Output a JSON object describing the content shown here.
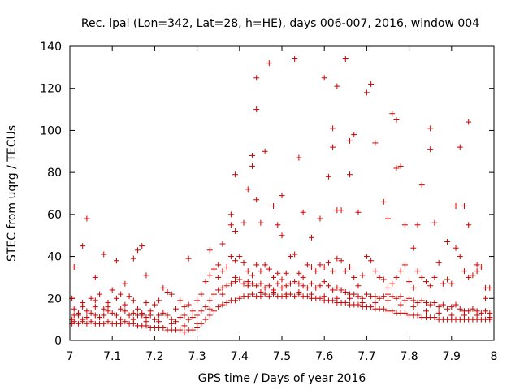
{
  "chart_data": {
    "type": "scatter",
    "title": "Rec. lpal (Lon=342, Lat=28, h=HE), days 006-007, 2016, window 004",
    "xlabel": "GPS time / Days of year 2016",
    "ylabel": "STEC from uqrg / TECUs",
    "xlim": [
      7,
      8
    ],
    "ylim": [
      0,
      140
    ],
    "xticks": [
      7,
      7.1,
      7.2,
      7.3,
      7.4,
      7.5,
      7.6,
      7.7,
      7.8,
      7.9,
      8
    ],
    "xtick_labels": [
      "7",
      "7.1",
      "7.2",
      "7.3",
      "7.4",
      "7.5",
      "7.6",
      "7.7",
      "7.8",
      "7.9",
      "8"
    ],
    "yticks": [
      0,
      20,
      40,
      60,
      80,
      100,
      120,
      140
    ],
    "ytick_labels": [
      "0",
      "20",
      "40",
      "60",
      "80",
      "100",
      "120",
      "140"
    ],
    "marker": "plus",
    "color": "#cc0000",
    "grid": false,
    "points": [
      [
        7.01,
        35
      ],
      [
        7.03,
        45
      ],
      [
        7.04,
        58
      ],
      [
        7.06,
        30
      ],
      [
        7.08,
        41
      ],
      [
        7.11,
        38
      ],
      [
        7.13,
        27
      ],
      [
        7.15,
        39
      ],
      [
        7.16,
        43
      ],
      [
        7.17,
        45
      ],
      [
        7.18,
        31
      ],
      [
        7.28,
        39
      ],
      [
        7.33,
        43
      ],
      [
        7.35,
        36
      ],
      [
        7.36,
        46
      ],
      [
        7.38,
        60
      ],
      [
        7.38,
        55
      ],
      [
        7.39,
        52
      ],
      [
        7.39,
        79
      ],
      [
        7.41,
        56
      ],
      [
        7.42,
        72
      ],
      [
        7.43,
        88
      ],
      [
        7.43,
        83
      ],
      [
        7.44,
        125
      ],
      [
        7.44,
        110
      ],
      [
        7.44,
        67
      ],
      [
        7.45,
        56
      ],
      [
        7.46,
        90
      ],
      [
        7.47,
        132
      ],
      [
        7.48,
        64
      ],
      [
        7.49,
        55
      ],
      [
        7.5,
        69
      ],
      [
        7.5,
        50
      ],
      [
        7.53,
        134
      ],
      [
        7.54,
        87
      ],
      [
        7.55,
        61
      ],
      [
        7.57,
        49
      ],
      [
        7.59,
        58
      ],
      [
        7.6,
        125
      ],
      [
        7.61,
        78
      ],
      [
        7.62,
        101
      ],
      [
        7.62,
        92
      ],
      [
        7.63,
        121
      ],
      [
        7.63,
        62
      ],
      [
        7.64,
        62
      ],
      [
        7.65,
        134
      ],
      [
        7.66,
        95
      ],
      [
        7.67,
        98
      ],
      [
        7.66,
        79
      ],
      [
        7.68,
        61
      ],
      [
        7.7,
        118
      ],
      [
        7.71,
        122
      ],
      [
        7.72,
        94
      ],
      [
        7.74,
        66
      ],
      [
        7.75,
        58
      ],
      [
        7.76,
        108
      ],
      [
        7.77,
        82
      ],
      [
        7.77,
        105
      ],
      [
        7.78,
        83
      ],
      [
        7.79,
        55
      ],
      [
        7.81,
        44
      ],
      [
        7.82,
        55
      ],
      [
        7.83,
        74
      ],
      [
        7.85,
        101
      ],
      [
        7.85,
        91
      ],
      [
        7.86,
        56
      ],
      [
        7.89,
        47
      ],
      [
        7.91,
        64
      ],
      [
        7.92,
        92
      ],
      [
        7.93,
        64
      ],
      [
        7.94,
        104
      ],
      [
        7.94,
        55
      ],
      [
        7.96,
        36
      ],
      [
        7.98,
        25
      ],
      [
        7.005,
        20
      ],
      [
        7.01,
        15
      ],
      [
        7.02,
        12
      ],
      [
        7.03,
        18
      ],
      [
        7.04,
        14
      ],
      [
        7.05,
        20
      ],
      [
        7.06,
        16
      ],
      [
        7.07,
        22
      ],
      [
        7.08,
        15
      ],
      [
        7.09,
        18
      ],
      [
        7.1,
        24
      ],
      [
        7.11,
        20
      ],
      [
        7.12,
        22
      ],
      [
        7.13,
        17
      ],
      [
        7.14,
        21
      ],
      [
        7.15,
        19
      ],
      [
        7.16,
        15
      ],
      [
        7.17,
        13
      ],
      [
        7.18,
        18
      ],
      [
        7.19,
        14
      ],
      [
        7.2,
        17
      ],
      [
        7.21,
        19
      ],
      [
        7.22,
        25
      ],
      [
        7.23,
        23
      ],
      [
        7.24,
        22
      ],
      [
        7.25,
        15
      ],
      [
        7.26,
        19
      ],
      [
        7.27,
        16
      ],
      [
        7.28,
        17
      ],
      [
        7.29,
        14
      ],
      [
        7.3,
        19
      ],
      [
        7.31,
        22
      ],
      [
        7.32,
        28
      ],
      [
        7.33,
        31
      ],
      [
        7.34,
        34
      ],
      [
        7.35,
        30
      ],
      [
        7.36,
        33
      ],
      [
        7.37,
        35
      ],
      [
        7.38,
        40
      ],
      [
        7.39,
        38
      ],
      [
        7.4,
        40
      ],
      [
        7.41,
        37
      ],
      [
        7.42,
        33
      ],
      [
        7.43,
        31
      ],
      [
        7.44,
        36
      ],
      [
        7.45,
        33
      ],
      [
        7.46,
        36
      ],
      [
        7.47,
        34
      ],
      [
        7.48,
        30
      ],
      [
        7.49,
        32
      ],
      [
        7.5,
        29
      ],
      [
        7.51,
        32
      ],
      [
        7.52,
        40
      ],
      [
        7.53,
        41
      ],
      [
        7.54,
        32
      ],
      [
        7.55,
        30
      ],
      [
        7.56,
        36
      ],
      [
        7.57,
        35
      ],
      [
        7.58,
        33
      ],
      [
        7.59,
        36
      ],
      [
        7.6,
        35
      ],
      [
        7.61,
        37
      ],
      [
        7.62,
        33
      ],
      [
        7.63,
        39
      ],
      [
        7.64,
        38
      ],
      [
        7.65,
        33
      ],
      [
        7.66,
        35
      ],
      [
        7.67,
        30
      ],
      [
        7.68,
        26
      ],
      [
        7.69,
        31
      ],
      [
        7.7,
        40
      ],
      [
        7.71,
        38
      ],
      [
        7.72,
        33
      ],
      [
        7.73,
        30
      ],
      [
        7.74,
        29
      ],
      [
        7.75,
        25
      ],
      [
        7.76,
        27
      ],
      [
        7.77,
        30
      ],
      [
        7.78,
        33
      ],
      [
        7.79,
        36
      ],
      [
        7.8,
        28
      ],
      [
        7.81,
        25
      ],
      [
        7.82,
        33
      ],
      [
        7.83,
        30
      ],
      [
        7.84,
        28
      ],
      [
        7.85,
        26
      ],
      [
        7.86,
        30
      ],
      [
        7.87,
        37
      ],
      [
        7.88,
        27
      ],
      [
        7.89,
        29
      ],
      [
        7.9,
        27
      ],
      [
        7.91,
        44
      ],
      [
        7.92,
        40
      ],
      [
        7.93,
        33
      ],
      [
        7.94,
        30
      ],
      [
        7.95,
        31
      ],
      [
        7.96,
        33
      ],
      [
        7.97,
        35
      ],
      [
        7.98,
        20
      ],
      [
        7.99,
        25
      ],
      [
        7.005,
        10
      ],
      [
        7.01,
        12
      ],
      [
        7.02,
        13
      ],
      [
        7.03,
        10
      ],
      [
        7.04,
        11
      ],
      [
        7.05,
        13
      ],
      [
        7.06,
        12
      ],
      [
        7.07,
        11
      ],
      [
        7.08,
        12
      ],
      [
        7.09,
        14
      ],
      [
        7.1,
        13
      ],
      [
        7.11,
        12
      ],
      [
        7.12,
        15
      ],
      [
        7.13,
        14
      ],
      [
        7.14,
        12
      ],
      [
        7.15,
        13
      ],
      [
        7.16,
        12
      ],
      [
        7.17,
        12
      ],
      [
        7.18,
        11
      ],
      [
        7.19,
        12
      ],
      [
        7.2,
        10
      ],
      [
        7.21,
        12
      ],
      [
        7.22,
        13
      ],
      [
        7.23,
        12
      ],
      [
        7.24,
        10
      ],
      [
        7.25,
        9
      ],
      [
        7.26,
        11
      ],
      [
        7.27,
        12
      ],
      [
        7.28,
        10
      ],
      [
        7.29,
        11
      ],
      [
        7.3,
        12
      ],
      [
        7.31,
        14
      ],
      [
        7.32,
        16
      ],
      [
        7.33,
        19
      ],
      [
        7.34,
        22
      ],
      [
        7.35,
        24
      ],
      [
        7.36,
        25
      ],
      [
        7.37,
        26
      ],
      [
        7.38,
        27
      ],
      [
        7.39,
        28
      ],
      [
        7.4,
        29
      ],
      [
        7.41,
        27
      ],
      [
        7.42,
        28
      ],
      [
        7.43,
        27
      ],
      [
        7.44,
        26
      ],
      [
        7.45,
        27
      ],
      [
        7.46,
        25
      ],
      [
        7.47,
        26
      ],
      [
        7.48,
        24
      ],
      [
        7.49,
        27
      ],
      [
        7.5,
        25
      ],
      [
        7.51,
        26
      ],
      [
        7.52,
        27
      ],
      [
        7.53,
        28
      ],
      [
        7.54,
        27
      ],
      [
        7.55,
        26
      ],
      [
        7.56,
        25
      ],
      [
        7.57,
        27
      ],
      [
        7.58,
        25
      ],
      [
        7.59,
        26
      ],
      [
        7.6,
        28
      ],
      [
        7.61,
        26
      ],
      [
        7.62,
        24
      ],
      [
        7.63,
        25
      ],
      [
        7.64,
        24
      ],
      [
        7.65,
        23
      ],
      [
        7.66,
        22
      ],
      [
        7.67,
        22
      ],
      [
        7.68,
        21
      ],
      [
        7.69,
        20
      ],
      [
        7.7,
        22
      ],
      [
        7.71,
        21
      ],
      [
        7.72,
        21
      ],
      [
        7.73,
        20
      ],
      [
        7.74,
        21
      ],
      [
        7.75,
        22
      ],
      [
        7.76,
        21
      ],
      [
        7.77,
        20
      ],
      [
        7.78,
        21
      ],
      [
        7.79,
        19
      ],
      [
        7.8,
        20
      ],
      [
        7.81,
        19
      ],
      [
        7.82,
        18
      ],
      [
        7.83,
        19
      ],
      [
        7.84,
        18
      ],
      [
        7.85,
        17
      ],
      [
        7.86,
        18
      ],
      [
        7.87,
        16
      ],
      [
        7.88,
        17
      ],
      [
        7.89,
        15
      ],
      [
        7.9,
        16
      ],
      [
        7.91,
        17
      ],
      [
        7.92,
        15
      ],
      [
        7.93,
        14
      ],
      [
        7.94,
        14
      ],
      [
        7.95,
        15
      ],
      [
        7.96,
        14
      ],
      [
        7.97,
        13
      ],
      [
        7.98,
        14
      ],
      [
        7.99,
        13
      ],
      [
        7.005,
        8
      ],
      [
        7.01,
        9
      ],
      [
        7.02,
        8
      ],
      [
        7.03,
        9
      ],
      [
        7.04,
        8
      ],
      [
        7.05,
        9
      ],
      [
        7.06,
        8
      ],
      [
        7.07,
        8
      ],
      [
        7.08,
        8
      ],
      [
        7.09,
        9
      ],
      [
        7.1,
        8
      ],
      [
        7.11,
        8
      ],
      [
        7.12,
        8
      ],
      [
        7.13,
        9
      ],
      [
        7.14,
        8
      ],
      [
        7.15,
        8
      ],
      [
        7.16,
        7
      ],
      [
        7.17,
        7
      ],
      [
        7.18,
        7
      ],
      [
        7.19,
        6
      ],
      [
        7.2,
        6
      ],
      [
        7.21,
        6
      ],
      [
        7.22,
        6
      ],
      [
        7.23,
        5
      ],
      [
        7.24,
        5
      ],
      [
        7.25,
        5
      ],
      [
        7.26,
        5
      ],
      [
        7.27,
        4
      ],
      [
        7.28,
        5
      ],
      [
        7.29,
        5
      ],
      [
        7.3,
        6
      ],
      [
        7.31,
        8
      ],
      [
        7.32,
        10
      ],
      [
        7.33,
        12
      ],
      [
        7.34,
        14
      ],
      [
        7.35,
        16
      ],
      [
        7.36,
        17
      ],
      [
        7.37,
        18
      ],
      [
        7.38,
        19
      ],
      [
        7.39,
        19
      ],
      [
        7.4,
        20
      ],
      [
        7.41,
        21
      ],
      [
        7.42,
        21
      ],
      [
        7.43,
        22
      ],
      [
        7.44,
        21
      ],
      [
        7.45,
        21
      ],
      [
        7.46,
        22
      ],
      [
        7.47,
        21
      ],
      [
        7.48,
        22
      ],
      [
        7.49,
        21
      ],
      [
        7.5,
        21
      ],
      [
        7.51,
        21
      ],
      [
        7.52,
        22
      ],
      [
        7.53,
        21
      ],
      [
        7.54,
        22
      ],
      [
        7.55,
        21
      ],
      [
        7.56,
        21
      ],
      [
        7.57,
        20
      ],
      [
        7.58,
        20
      ],
      [
        7.59,
        20
      ],
      [
        7.6,
        19
      ],
      [
        7.61,
        19
      ],
      [
        7.62,
        19
      ],
      [
        7.63,
        18
      ],
      [
        7.64,
        18
      ],
      [
        7.65,
        18
      ],
      [
        7.66,
        17
      ],
      [
        7.67,
        17
      ],
      [
        7.68,
        17
      ],
      [
        7.69,
        16
      ],
      [
        7.7,
        16
      ],
      [
        7.71,
        16
      ],
      [
        7.72,
        15
      ],
      [
        7.73,
        15
      ],
      [
        7.74,
        15
      ],
      [
        7.75,
        14
      ],
      [
        7.76,
        14
      ],
      [
        7.77,
        13
      ],
      [
        7.78,
        13
      ],
      [
        7.79,
        13
      ],
      [
        7.8,
        12
      ],
      [
        7.81,
        12
      ],
      [
        7.82,
        12
      ],
      [
        7.83,
        11
      ],
      [
        7.84,
        11
      ],
      [
        7.85,
        11
      ],
      [
        7.86,
        11
      ],
      [
        7.87,
        10
      ],
      [
        7.88,
        10
      ],
      [
        7.89,
        10
      ],
      [
        7.9,
        10
      ],
      [
        7.91,
        10
      ],
      [
        7.92,
        10
      ],
      [
        7.93,
        10
      ],
      [
        7.94,
        10
      ],
      [
        7.95,
        10
      ],
      [
        7.96,
        10
      ],
      [
        7.97,
        10
      ],
      [
        7.98,
        10
      ],
      [
        7.99,
        10
      ],
      [
        7.03,
        16
      ],
      [
        7.06,
        19
      ],
      [
        7.09,
        16
      ],
      [
        7.12,
        10
      ],
      [
        7.15,
        10
      ],
      [
        7.18,
        9
      ],
      [
        7.21,
        9
      ],
      [
        7.24,
        8
      ],
      [
        7.27,
        7
      ],
      [
        7.3,
        8
      ],
      [
        7.33,
        15
      ],
      [
        7.36,
        22
      ],
      [
        7.39,
        30
      ],
      [
        7.42,
        26
      ],
      [
        7.45,
        23
      ],
      [
        7.48,
        23
      ],
      [
        7.51,
        22
      ],
      [
        7.54,
        23
      ],
      [
        7.57,
        22
      ],
      [
        7.6,
        21
      ],
      [
        7.63,
        20
      ],
      [
        7.66,
        20
      ],
      [
        7.69,
        18
      ],
      [
        7.72,
        18
      ],
      [
        7.75,
        19
      ],
      [
        7.78,
        17
      ],
      [
        7.81,
        16
      ],
      [
        7.84,
        14
      ],
      [
        7.87,
        13
      ],
      [
        7.9,
        12
      ],
      [
        7.93,
        12
      ],
      [
        7.96,
        12
      ],
      [
        7.99,
        11
      ]
    ]
  }
}
